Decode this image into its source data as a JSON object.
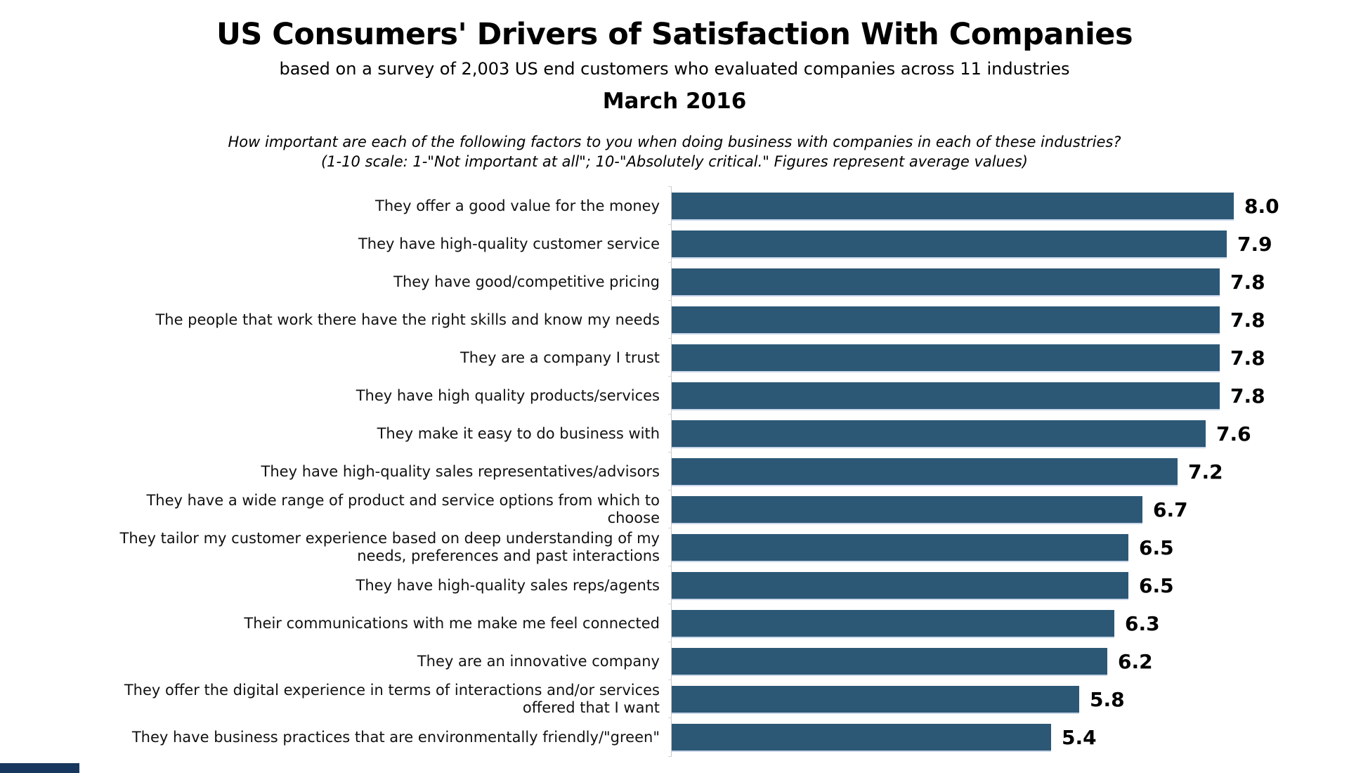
{
  "header": {
    "title": "US Consumers' Drivers of Satisfaction With Companies",
    "subtitle": "based on a survey of 2,003 US end customers who evaluated companies across 11 industries",
    "date": "March 2016",
    "question_line1": "How important are each of the following factors to you when doing business with companies in each of these industries?",
    "question_line2": "(1-10 scale: 1-\"Not important at all\"; 10-\"Absolutely critical.\" Figures represent average values)"
  },
  "chart_data": {
    "type": "bar",
    "orientation": "horizontal",
    "title": "US Consumers' Drivers of Satisfaction With Companies",
    "subtitle": "based on a survey of 2,003 US end customers who evaluated companies across 11 industries",
    "date_label": "March 2016",
    "categories": [
      "They offer a good value for the money",
      "They have high-quality customer service",
      "They have good/competitive pricing",
      "The people that work there have the right skills and know my needs",
      "They are a company I trust",
      "They have high quality products/services",
      "They make it easy to do business with",
      "They have high-quality sales representatives/advisors",
      "They have a wide range of product and service options from which to\nchoose",
      "They tailor my customer experience based on deep understanding of my\nneeds, preferences and past interactions",
      "They have high-quality sales reps/agents",
      "Their communications with me make me feel connected",
      "They are an innovative company",
      "They offer the digital experience in terms of interactions and/or services\noffered that I want",
      "They have business practices that are environmentally friendly/\"green\""
    ],
    "values": [
      8.0,
      7.9,
      7.8,
      7.8,
      7.8,
      7.8,
      7.6,
      7.2,
      6.7,
      6.5,
      6.5,
      6.3,
      6.2,
      5.8,
      5.4
    ],
    "xlabel": "",
    "ylabel": "",
    "xlim": [
      0,
      8.5
    ],
    "grid": false,
    "legend": false,
    "data_labels": true,
    "bar_color": "#2c5876",
    "axis_line_color": "#c9c9c9",
    "footer_strip_color": "#17375e"
  }
}
